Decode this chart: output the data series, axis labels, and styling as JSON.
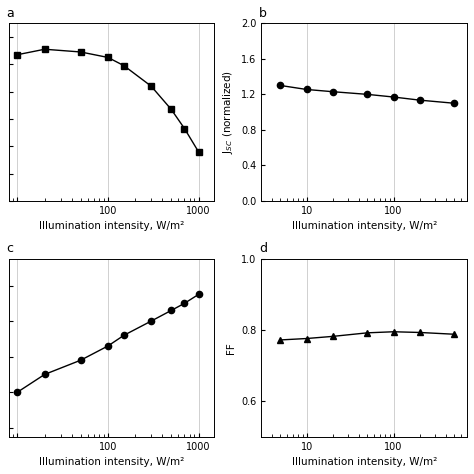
{
  "subplot_a": {
    "label": "a",
    "x": [
      10,
      20,
      50,
      100,
      150,
      300,
      500,
      700,
      1000
    ],
    "y": [
      1.735,
      1.755,
      1.745,
      1.725,
      1.695,
      1.62,
      1.535,
      1.465,
      1.38
    ],
    "marker": "s",
    "markersize": 4.5,
    "ylabel": "",
    "show_yticks": false,
    "ylim": [
      1.2,
      1.85
    ],
    "xlim": [
      8,
      1500
    ],
    "xtick_locs": [
      10,
      100,
      1000
    ],
    "xtick_labels": [
      "",
      "100",
      "1000"
    ],
    "xlabel": "Illumination intensity, W/m²"
  },
  "subplot_b": {
    "label": "b",
    "x": [
      5,
      10,
      20,
      50,
      100,
      200,
      500
    ],
    "y": [
      1.3,
      1.255,
      1.23,
      1.2,
      1.17,
      1.135,
      1.1
    ],
    "marker": "o",
    "markersize": 4.5,
    "ylabel": "J$_{SC}$ (normalized)",
    "show_yticks": true,
    "ylim": [
      0.0,
      2.0
    ],
    "yticks": [
      0.0,
      0.4,
      0.8,
      1.2,
      1.6,
      2.0
    ],
    "xlim": [
      3,
      700
    ],
    "xtick_locs": [
      10,
      100
    ],
    "xtick_labels": [
      "10",
      "100"
    ],
    "xlabel": "Illumination intensity, W/m²"
  },
  "subplot_c": {
    "label": "c",
    "x": [
      10,
      20,
      50,
      100,
      150,
      300,
      500,
      700,
      1000
    ],
    "y": [
      0.9,
      0.91,
      0.918,
      0.926,
      0.932,
      0.94,
      0.946,
      0.95,
      0.955
    ],
    "marker": "o",
    "markersize": 4.5,
    "ylabel": "",
    "show_yticks": false,
    "ylim": [
      0.875,
      0.975
    ],
    "xlim": [
      8,
      1500
    ],
    "xtick_locs": [
      10,
      100,
      1000
    ],
    "xtick_labels": [
      "",
      "100",
      "1000"
    ],
    "xlabel": "Illumination intensity, W/m²"
  },
  "subplot_d": {
    "label": "d",
    "x": [
      5,
      10,
      20,
      50,
      100,
      200,
      500
    ],
    "y": [
      0.772,
      0.776,
      0.782,
      0.792,
      0.795,
      0.793,
      0.788
    ],
    "marker": "^",
    "markersize": 4.5,
    "ylabel": "FF",
    "show_yticks": true,
    "ylim": [
      0.5,
      1.0
    ],
    "yticks": [
      0.6,
      0.8,
      1.0
    ],
    "xlim": [
      3,
      700
    ],
    "xtick_locs": [
      10,
      100
    ],
    "xtick_labels": [
      "10",
      "100"
    ],
    "xlabel": "Illumination intensity, W/m²"
  },
  "line_color": "#000000",
  "marker_facecolor": "#000000",
  "marker_edgecolor": "#000000",
  "line_width": 1.0,
  "grid_color": "#d0d0d0",
  "grid_linewidth": 0.7,
  "tick_fontsize": 7,
  "label_fontsize": 7.5,
  "sublabel_fontsize": 9,
  "spine_linewidth": 0.7
}
